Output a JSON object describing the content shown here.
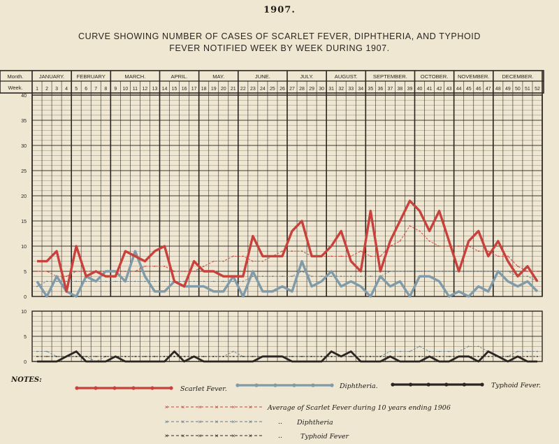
{
  "year": "1907.",
  "title_line1": "CURVE SHOWING NUMBER OF CASES OF SCARLET FEVER, DIPHTHERIA, AND TYPHOID",
  "title_line2": "FEVER NOTIFIED WEEK BY WEEK DURING 1907.",
  "row_labels": {
    "month": "Month.",
    "week": "Week."
  },
  "notes_title": "NOTES:",
  "legend": {
    "scarlet": "Scarlet Fever.",
    "diphtheria": "Diphtheria.",
    "typhoid": "Typhoid Fever."
  },
  "notes": {
    "avg_scarlet": "Average of Scarlet Fever during 10 years ending 1906",
    "avg_diphtheria": "Diphtheria",
    "avg_typhoid": "Typhoid Fever",
    "ditto": ".."
  },
  "colors": {
    "scarlet": "#c8413c",
    "diphtheria": "#7f9aa8",
    "typhoid": "#2b2522",
    "grid": "#2a2420",
    "background": "#efe7d2"
  },
  "chart_data": [
    {
      "type": "line",
      "panel": "upper",
      "months": [
        "JANUARY.",
        "FEBRUARY",
        "MARCH.",
        "APRIL.",
        "MAY.",
        "JUNE.",
        "JULY.",
        "AUGUST.",
        "SEPTEMBER.",
        "OCTOBER.",
        "NOVEMBER.",
        "DECEMBER."
      ],
      "month_weeks": [
        4,
        4,
        5,
        4,
        4,
        5,
        4,
        4,
        5,
        4,
        4,
        5
      ],
      "x": [
        1,
        2,
        3,
        4,
        5,
        6,
        7,
        8,
        9,
        10,
        11,
        12,
        13,
        14,
        15,
        16,
        17,
        18,
        19,
        20,
        21,
        22,
        23,
        24,
        25,
        26,
        27,
        28,
        29,
        30,
        31,
        32,
        33,
        34,
        35,
        36,
        37,
        38,
        39,
        40,
        41,
        42,
        43,
        44,
        45,
        46,
        47,
        48,
        49,
        50,
        51,
        52
      ],
      "ylim": [
        0,
        40
      ],
      "yticks": [
        0,
        5,
        10,
        15,
        20,
        25,
        30,
        35,
        40
      ],
      "grid": true,
      "series": [
        {
          "name": "Scarlet Fever.",
          "style": "solid",
          "values": [
            7,
            7,
            9,
            1,
            10,
            4,
            5,
            4,
            4,
            9,
            8,
            7,
            9,
            10,
            3,
            2,
            7,
            5,
            5,
            4,
            4,
            4,
            12,
            8,
            8,
            8,
            13,
            15,
            8,
            8,
            10,
            13,
            7,
            5,
            17,
            5,
            11,
            15,
            19,
            17,
            13,
            17,
            11,
            5,
            11,
            13,
            8,
            11,
            7,
            4,
            6,
            3
          ]
        },
        {
          "name": "Diphtheria.",
          "style": "solid",
          "values": [
            3,
            0,
            4,
            1,
            0,
            4,
            3,
            5,
            5,
            3,
            9,
            4,
            1,
            1,
            3,
            2,
            2,
            2,
            1,
            1,
            4,
            0,
            5,
            1,
            1,
            2,
            1,
            7,
            2,
            3,
            5,
            2,
            3,
            2,
            0,
            4,
            2,
            3,
            0,
            4,
            4,
            3,
            0,
            1,
            0,
            2,
            1,
            5,
            3,
            2,
            3,
            1
          ]
        },
        {
          "name": "Average of Scarlet Fever during 10 years ending 1906",
          "style": "dashed",
          "values": [
            5,
            5,
            4,
            4,
            5,
            5,
            5,
            5,
            5,
            5,
            5,
            6,
            6,
            6,
            5,
            5,
            5,
            6,
            7,
            7,
            8,
            8,
            7,
            7,
            8,
            9,
            9,
            9,
            8,
            8,
            8,
            8,
            8,
            9,
            8,
            8,
            10,
            11,
            14,
            13,
            11,
            10,
            10,
            10,
            10,
            9,
            9,
            8,
            8,
            6,
            5,
            5
          ]
        },
        {
          "name": "Diphtheria",
          "style": "dashed",
          "values": [
            2,
            3,
            3,
            3,
            3,
            3,
            3,
            3,
            3,
            3,
            3,
            3,
            3,
            3,
            3,
            3,
            3,
            3,
            3,
            3,
            3,
            3,
            4,
            4,
            4,
            4,
            4,
            5,
            4,
            4,
            4,
            4,
            4,
            4,
            4,
            4,
            5,
            5,
            5,
            5,
            5,
            5,
            5,
            5,
            5,
            5,
            5,
            5,
            5,
            4,
            4,
            3
          ]
        }
      ]
    },
    {
      "type": "line",
      "panel": "lower",
      "x": [
        1,
        2,
        3,
        4,
        5,
        6,
        7,
        8,
        9,
        10,
        11,
        12,
        13,
        14,
        15,
        16,
        17,
        18,
        19,
        20,
        21,
        22,
        23,
        24,
        25,
        26,
        27,
        28,
        29,
        30,
        31,
        32,
        33,
        34,
        35,
        36,
        37,
        38,
        39,
        40,
        41,
        42,
        43,
        44,
        45,
        46,
        47,
        48,
        49,
        50,
        51,
        52
      ],
      "ylim": [
        0,
        10
      ],
      "yticks": [
        0,
        5,
        10
      ],
      "grid": true,
      "series": [
        {
          "name": "Typhoid Fever.",
          "style": "solid",
          "values": [
            0,
            0,
            0,
            1,
            2,
            0,
            0,
            0,
            1,
            0,
            0,
            0,
            0,
            0,
            2,
            0,
            1,
            0,
            0,
            0,
            0,
            0,
            0,
            1,
            1,
            1,
            0,
            0,
            0,
            0,
            2,
            1,
            2,
            0,
            0,
            0,
            1,
            0,
            0,
            0,
            1,
            0,
            0,
            1,
            1,
            0,
            2,
            1,
            0,
            1,
            0,
            0
          ]
        },
        {
          "name": "Diphtheria",
          "style": "dashed",
          "values": [
            2,
            2,
            1,
            1,
            1,
            1,
            0,
            1,
            1,
            1,
            1,
            1,
            1,
            1,
            1,
            1,
            1,
            1,
            1,
            1,
            2,
            1,
            1,
            1,
            1,
            1,
            1,
            1,
            1,
            1,
            1,
            1,
            1,
            1,
            1,
            1,
            2,
            2,
            2,
            3,
            2,
            2,
            2,
            2,
            3,
            3,
            2,
            1,
            1,
            2,
            2,
            2
          ]
        },
        {
          "name": "Typhoid Fever",
          "style": "dashed",
          "values": [
            1,
            1,
            1,
            1,
            1,
            1,
            1,
            1,
            1,
            1,
            1,
            1,
            1,
            1,
            1,
            1,
            1,
            1,
            1,
            1,
            1,
            1,
            1,
            1,
            1,
            1,
            1,
            1,
            1,
            1,
            1,
            1,
            1,
            1,
            1,
            1,
            1,
            1,
            1,
            1,
            1,
            1,
            1,
            1,
            1,
            1,
            1,
            1,
            1,
            1,
            1,
            1
          ]
        }
      ]
    }
  ]
}
